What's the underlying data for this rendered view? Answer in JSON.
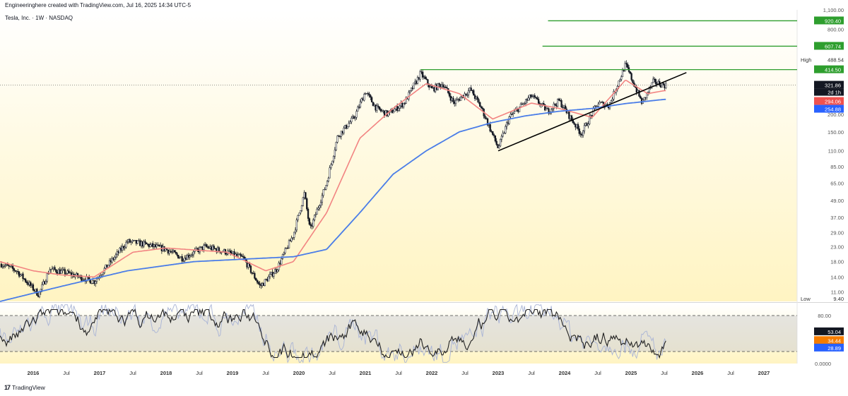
{
  "header": {
    "attribution": "Engineeringhere created with TradingView.com, Jul 16, 2025 14:34 UTC-5",
    "symbol_line": "Tesla, Inc. · 1W · NASDAQ"
  },
  "footer": {
    "logo_mark": "17",
    "logo_text": "TradingView"
  },
  "colors": {
    "price_bg_top": "#ffffff",
    "price_bg_bottom": "#fff4c2",
    "candle": "#131722",
    "ma_fast": "#f28482",
    "ma_slow": "#4a7de8",
    "target_line": "#2e9e2e",
    "stoch_k": "#222222",
    "stoch_d": "#a9b4d6",
    "stoch_band": "#cfcfcf"
  },
  "chart_data": [
    {
      "type": "candlestick",
      "title": "Tesla, Inc. · 1W · NASDAQ",
      "y_scale": "log",
      "ylim": [
        9.4,
        1100
      ],
      "y_ticks": [
        "1,100.00",
        "800.00",
        "200.00",
        "150.00",
        "110.00",
        "85.00",
        "65.00",
        "49.00",
        "37.00",
        "29.00",
        "23.00",
        "18.00",
        "14.00",
        "11.00"
      ],
      "x_ticks": [
        "2016",
        "Jul",
        "2017",
        "Jul",
        "2018",
        "Jul",
        "2019",
        "Jul",
        "2020",
        "Jul",
        "2021",
        "Jul",
        "2022",
        "Jul",
        "2023",
        "Jul",
        "2024",
        "Jul",
        "2025",
        "Jul",
        "2026",
        "Jul",
        "2027"
      ],
      "xlim": [
        "2015-07",
        "2027-07"
      ],
      "series_anchors": {
        "close": [
          [
            "2015-07",
            17.5
          ],
          [
            "2015-10",
            15.5
          ],
          [
            "2016-02",
            10.5
          ],
          [
            "2016-04",
            16.0
          ],
          [
            "2016-07",
            15.0
          ],
          [
            "2016-12",
            13.0
          ],
          [
            "2017-04",
            20.0
          ],
          [
            "2017-06",
            25.0
          ],
          [
            "2017-09",
            24.0
          ],
          [
            "2018-01",
            22.0
          ],
          [
            "2018-04",
            19.0
          ],
          [
            "2018-08",
            23.0
          ],
          [
            "2018-12",
            21.0
          ],
          [
            "2019-03",
            19.0
          ],
          [
            "2019-06",
            12.0
          ],
          [
            "2019-09",
            16.0
          ],
          [
            "2019-12",
            28.0
          ],
          [
            "2020-02",
            55.0
          ],
          [
            "2020-03",
            30.0
          ],
          [
            "2020-06",
            65.0
          ],
          [
            "2020-08",
            140.0
          ],
          [
            "2020-11",
            190.0
          ],
          [
            "2021-01",
            290.0
          ],
          [
            "2021-03",
            220.0
          ],
          [
            "2021-05",
            200.0
          ],
          [
            "2021-08",
            240.0
          ],
          [
            "2021-11",
            390.0
          ],
          [
            "2022-01",
            300.0
          ],
          [
            "2022-03",
            330.0
          ],
          [
            "2022-05",
            240.0
          ],
          [
            "2022-08",
            300.0
          ],
          [
            "2022-10",
            220.0
          ],
          [
            "2023-01",
            115.0
          ],
          [
            "2023-03",
            190.0
          ],
          [
            "2023-07",
            270.0
          ],
          [
            "2023-10",
            210.0
          ],
          [
            "2023-12",
            250.0
          ],
          [
            "2024-04",
            145.0
          ],
          [
            "2024-07",
            240.0
          ],
          [
            "2024-09",
            230.0
          ],
          [
            "2024-12",
            450.0
          ],
          [
            "2025-03",
            240.0
          ],
          [
            "2025-05",
            340.0
          ],
          [
            "2025-07",
            321.86
          ]
        ],
        "ma_fast": [
          [
            "2015-07",
            18.0
          ],
          [
            "2016-01",
            15.5
          ],
          [
            "2016-06",
            14.5
          ],
          [
            "2016-12",
            14.0
          ],
          [
            "2017-07",
            21.0
          ],
          [
            "2018-01",
            22.5
          ],
          [
            "2018-12",
            21.0
          ],
          [
            "2019-07",
            15.5
          ],
          [
            "2019-12",
            18.0
          ],
          [
            "2020-06",
            40.0
          ],
          [
            "2020-12",
            135.0
          ],
          [
            "2021-06",
            220.0
          ],
          [
            "2021-12",
            330.0
          ],
          [
            "2022-06",
            280.0
          ],
          [
            "2022-12",
            185.0
          ],
          [
            "2023-07",
            240.0
          ],
          [
            "2023-12",
            220.0
          ],
          [
            "2024-06",
            190.0
          ],
          [
            "2024-12",
            350.0
          ],
          [
            "2025-04",
            280.0
          ],
          [
            "2025-07",
            294.06
          ]
        ],
        "ma_slow": [
          [
            "2015-07",
            9.4
          ],
          [
            "2016-06",
            12.0
          ],
          [
            "2017-06",
            15.5
          ],
          [
            "2018-06",
            18.0
          ],
          [
            "2019-06",
            19.0
          ],
          [
            "2019-12",
            19.5
          ],
          [
            "2020-06",
            22.0
          ],
          [
            "2020-12",
            40.0
          ],
          [
            "2021-06",
            75.0
          ],
          [
            "2021-12",
            110.0
          ],
          [
            "2022-06",
            150.0
          ],
          [
            "2022-12",
            175.0
          ],
          [
            "2023-06",
            195.0
          ],
          [
            "2023-12",
            210.0
          ],
          [
            "2024-06",
            220.0
          ],
          [
            "2024-12",
            238.0
          ],
          [
            "2025-07",
            254.88
          ]
        ]
      },
      "levels": [
        {
          "label": "920.40",
          "value": 920.4,
          "from": "2023-10",
          "kind": "target"
        },
        {
          "label": "607.74",
          "value": 607.74,
          "from": "2023-09",
          "kind": "target"
        },
        {
          "label": "414.50",
          "value": 414.5,
          "from": "2021-11",
          "kind": "target"
        }
      ],
      "trendline": {
        "start": [
          "2023-01",
          110.0
        ],
        "end": [
          "2025-11",
          395.0
        ]
      },
      "markers": {
        "high_label": "High",
        "high_value": "488.54",
        "low_label": "Low",
        "low_value": "9.40",
        "price_value": "321.86",
        "countdown": "2d 1h",
        "ma_fast_value": "294.06",
        "ma_slow_value": "254.88"
      }
    },
    {
      "type": "line",
      "title": "",
      "ylim": [
        0,
        100
      ],
      "y_ticks": [
        "80.00",
        "0.0000"
      ],
      "bands": [
        20,
        80
      ],
      "series": [
        {
          "name": "",
          "last": 53.04,
          "role": "k"
        },
        {
          "name": "",
          "last": 34.44,
          "role": "d"
        }
      ],
      "markers": {
        "k_value": "53.04",
        "d_value": "34.44",
        "third_value": "28.89"
      }
    }
  ]
}
